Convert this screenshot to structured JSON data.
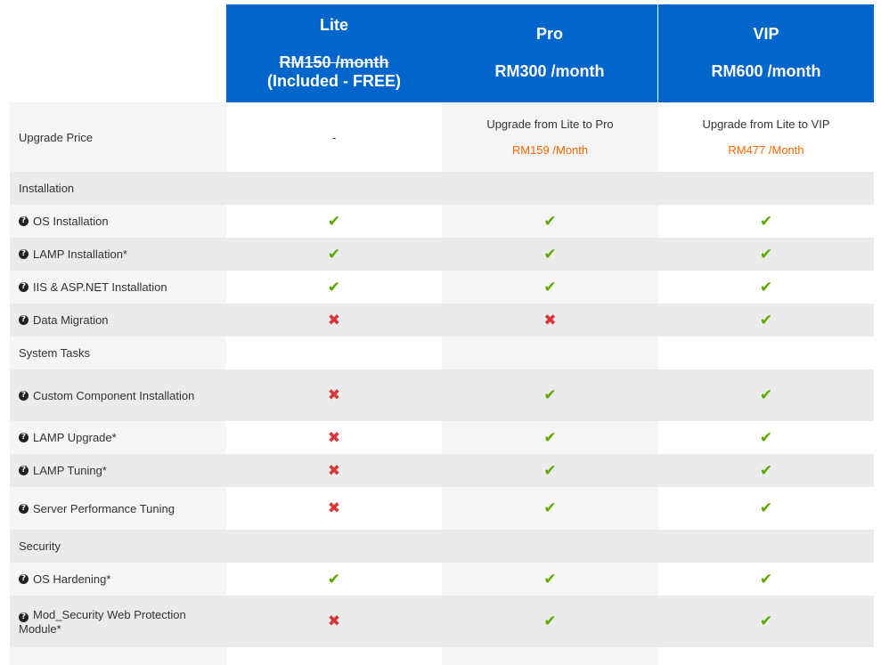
{
  "plans": [
    {
      "name": "Lite",
      "price": "RM150 /month",
      "note": "(Included - FREE)"
    },
    {
      "name": "Pro",
      "price": "RM300 /month"
    },
    {
      "name": "VIP",
      "price": "RM600 /month"
    }
  ],
  "upgrade": {
    "label": "Upgrade Price",
    "lite": "-",
    "pro_text": "Upgrade from Lite to Pro",
    "pro_price": "RM159 /Month",
    "vip_text": "Upgrade from Lite to VIP",
    "vip_price": "RM477 /Month",
    "price_color": "#ff6600"
  },
  "categories": {
    "installation": "Installation",
    "system_tasks": "System Tasks",
    "security": "Security"
  },
  "features": [
    {
      "label": "OS Installation",
      "lite": "check",
      "pro": "check",
      "vip": "check"
    },
    {
      "label": "LAMP Installation*",
      "lite": "check",
      "pro": "check",
      "vip": "check"
    },
    {
      "label": "IIS & ASP.NET Installation",
      "lite": "check",
      "pro": "check",
      "vip": "check"
    },
    {
      "label": "Data Migration",
      "lite": "cross",
      "pro": "cross",
      "vip": "check"
    },
    {
      "label": "Custom Component Installation",
      "lite": "cross",
      "pro": "check",
      "vip": "check"
    },
    {
      "label": "LAMP Upgrade*",
      "lite": "cross",
      "pro": "check",
      "vip": "check"
    },
    {
      "label": "LAMP Tuning*",
      "lite": "cross",
      "pro": "check",
      "vip": "check"
    },
    {
      "label": "Server Performance Tuning",
      "lite": "cross",
      "pro": "check",
      "vip": "check"
    },
    {
      "label": "OS Hardening*",
      "lite": "check",
      "pro": "check",
      "vip": "check"
    },
    {
      "label": "Mod_Security Web Protection Module*",
      "lite": "cross",
      "pro": "check",
      "vip": "check"
    }
  ],
  "icons": {
    "help": "question-circle-icon",
    "check": "check-icon",
    "cross": "cross-icon"
  },
  "colors": {
    "header_bg": "#0066cc",
    "check": "#5aa800",
    "cross": "#d9363a"
  }
}
